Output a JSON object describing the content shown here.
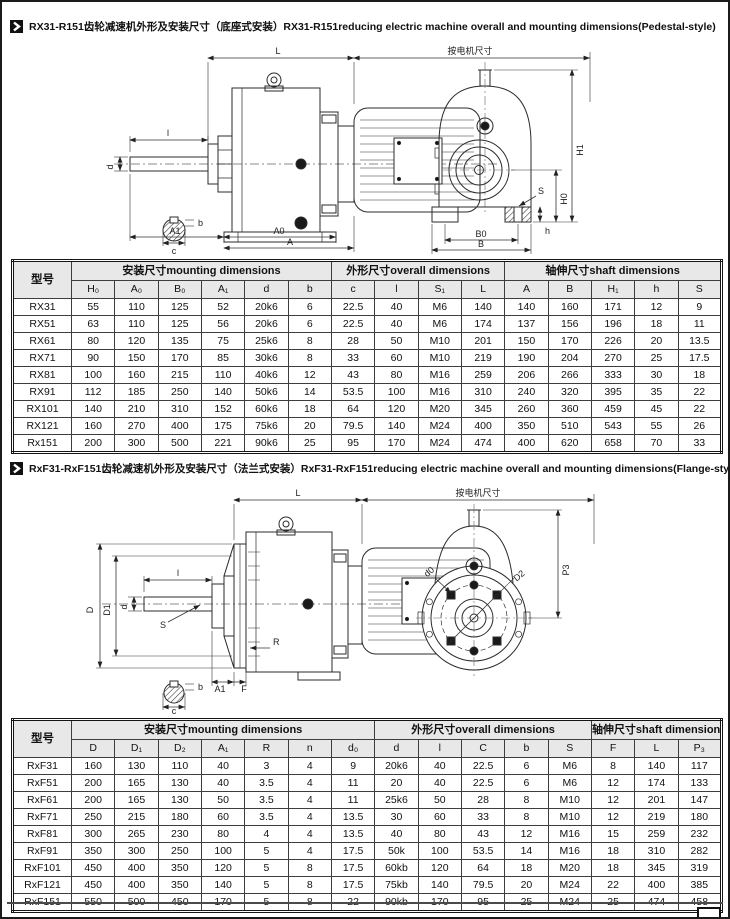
{
  "colors": {
    "accent": "#111111",
    "table_header_bg": "#e8e8e8",
    "line": "#2b2b2b"
  },
  "section1": {
    "title": "RX31-R151齿轮减速机外形及安装尺寸（底座式安装）RX31-R151reducing electric machine overall and mounting dimensions(Pedestal-style)",
    "diagram": {
      "L": "L",
      "motor": "按电机尺寸",
      "l": "l",
      "d": "d",
      "A1": "A1",
      "A0": "A0",
      "A": "A",
      "c": "c",
      "b": "b",
      "H1": "H1",
      "H0": "H0",
      "h": "h",
      "S": "S",
      "B0": "B0",
      "B": "B"
    },
    "table": {
      "model_header": "型号",
      "groups": [
        {
          "label": "安装尺寸mounting dimensions",
          "cols": 6
        },
        {
          "label": "外形尺寸overall dimensions",
          "cols": 4
        },
        {
          "label": "轴伸尺寸shaft dimensions",
          "cols": 5
        }
      ],
      "columns": [
        "H₀",
        "A₀",
        "B₀",
        "A₁",
        "d",
        "b",
        "c",
        "l",
        "S₁",
        "L",
        "A",
        "B",
        "H₁",
        "h",
        "S"
      ],
      "rows": [
        {
          "model": "RX31",
          "values": [
            "55",
            "110",
            "125",
            "52",
            "20k6",
            "6",
            "22.5",
            "40",
            "M6",
            "140",
            "140",
            "160",
            "171",
            "12",
            "9"
          ]
        },
        {
          "model": "RX51",
          "values": [
            "63",
            "110",
            "125",
            "56",
            "20k6",
            "6",
            "22.5",
            "40",
            "M6",
            "174",
            "137",
            "156",
            "196",
            "18",
            "11"
          ]
        },
        {
          "model": "RX61",
          "values": [
            "80",
            "120",
            "135",
            "75",
            "25k6",
            "8",
            "28",
            "50",
            "M10",
            "201",
            "150",
            "170",
            "226",
            "20",
            "13.5"
          ]
        },
        {
          "model": "RX71",
          "values": [
            "90",
            "150",
            "170",
            "85",
            "30k6",
            "8",
            "33",
            "60",
            "M10",
            "219",
            "190",
            "204",
            "270",
            "25",
            "17.5"
          ]
        },
        {
          "model": "RX81",
          "values": [
            "100",
            "160",
            "215",
            "110",
            "40k6",
            "12",
            "43",
            "80",
            "M16",
            "259",
            "206",
            "266",
            "333",
            "30",
            "18"
          ]
        },
        {
          "model": "RX91",
          "values": [
            "112",
            "185",
            "250",
            "140",
            "50k6",
            "14",
            "53.5",
            "100",
            "M16",
            "310",
            "240",
            "320",
            "395",
            "35",
            "22"
          ]
        },
        {
          "model": "RX101",
          "values": [
            "140",
            "210",
            "310",
            "152",
            "60k6",
            "18",
            "64",
            "120",
            "M20",
            "345",
            "260",
            "360",
            "459",
            "45",
            "22"
          ]
        },
        {
          "model": "RX121",
          "values": [
            "160",
            "270",
            "400",
            "175",
            "75k6",
            "20",
            "79.5",
            "140",
            "M24",
            "400",
            "350",
            "510",
            "543",
            "55",
            "26"
          ]
        },
        {
          "model": "Rx151",
          "values": [
            "200",
            "300",
            "500",
            "221",
            "90k6",
            "25",
            "95",
            "170",
            "M24",
            "474",
            "400",
            "620",
            "658",
            "70",
            "33"
          ]
        }
      ]
    }
  },
  "section2": {
    "title": "RxF31-RxF151齿轮减速机外形及安装尺寸（法兰式安装）RxF31-RxF151reducing electric machine overall and mounting dimensions(Flange-style)",
    "diagram": {
      "L": "L",
      "motor": "按电机尺寸",
      "l": "l",
      "d": "d",
      "S": "S",
      "R": "R",
      "A1": "A1",
      "F": "F",
      "c": "c",
      "b": "b",
      "D": "D",
      "D1": "D1",
      "D2": "D2",
      "d0": "d0",
      "P3": "P3"
    },
    "table": {
      "model_header": "型号",
      "groups": [
        {
          "label": "安装尺寸mounting dimensions",
          "cols": 7
        },
        {
          "label": "外形尺寸overall dimensions",
          "cols": 5
        },
        {
          "label": "轴伸尺寸shaft dimensions",
          "cols": 3
        }
      ],
      "columns": [
        "D",
        "D₁",
        "D₂",
        "A₁",
        "R",
        "n",
        "d₀",
        "d",
        "l",
        "C",
        "b",
        "S",
        "F",
        "L",
        "P₃"
      ],
      "rows": [
        {
          "model": "RxF31",
          "values": [
            "160",
            "130",
            "110",
            "40",
            "3",
            "4",
            "9",
            "20k6",
            "40",
            "22.5",
            "6",
            "M6",
            "8",
            "140",
            "117"
          ]
        },
        {
          "model": "RxF51",
          "values": [
            "200",
            "165",
            "130",
            "40",
            "3.5",
            "4",
            "11",
            "20",
            "40",
            "22.5",
            "6",
            "M6",
            "12",
            "174",
            "133"
          ]
        },
        {
          "model": "RxF61",
          "values": [
            "200",
            "165",
            "130",
            "50",
            "3.5",
            "4",
            "11",
            "25k6",
            "50",
            "28",
            "8",
            "M10",
            "12",
            "201",
            "147"
          ]
        },
        {
          "model": "RxF71",
          "values": [
            "250",
            "215",
            "180",
            "60",
            "3.5",
            "4",
            "13.5",
            "30",
            "60",
            "33",
            "8",
            "M10",
            "12",
            "219",
            "180"
          ]
        },
        {
          "model": "RxF81",
          "values": [
            "300",
            "265",
            "230",
            "80",
            "4",
            "4",
            "13.5",
            "40",
            "80",
            "43",
            "12",
            "M16",
            "15",
            "259",
            "232"
          ]
        },
        {
          "model": "RxF91",
          "values": [
            "350",
            "300",
            "250",
            "100",
            "5",
            "4",
            "17.5",
            "50k",
            "100",
            "53.5",
            "14",
            "M16",
            "18",
            "310",
            "282"
          ]
        },
        {
          "model": "RxF101",
          "values": [
            "450",
            "400",
            "350",
            "120",
            "5",
            "8",
            "17.5",
            "60kb",
            "120",
            "64",
            "18",
            "M20",
            "18",
            "345",
            "319"
          ]
        },
        {
          "model": "RxF121",
          "values": [
            "450",
            "400",
            "350",
            "140",
            "5",
            "8",
            "17.5",
            "75kb",
            "140",
            "79.5",
            "20",
            "M24",
            "22",
            "400",
            "385"
          ]
        },
        {
          "model": "RxF151",
          "values": [
            "550",
            "500",
            "450",
            "170",
            "5",
            "8",
            "22",
            "90kb",
            "170",
            "95",
            "25",
            "M24",
            "25",
            "474",
            "458"
          ]
        }
      ]
    }
  }
}
